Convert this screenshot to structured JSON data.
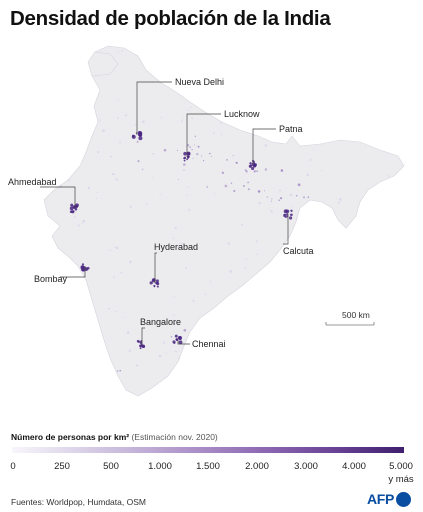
{
  "title": "Densidad de población de la India",
  "map": {
    "colors": {
      "land": "#ececef",
      "border": "#d7d4dc",
      "density_low": "#d9cfe8",
      "density_mid": "#9c80c0",
      "density_high": "#4b2783",
      "leader": "#444444"
    },
    "cities": [
      {
        "name": "Nueva Delhi"
      },
      {
        "name": "Lucknow"
      },
      {
        "name": "Patna"
      },
      {
        "name": "Ahmedabad"
      },
      {
        "name": "Calcuta"
      },
      {
        "name": "Hyderabad"
      },
      {
        "name": "Bombay"
      },
      {
        "name": "Bangalore"
      },
      {
        "name": "Chennai"
      }
    ],
    "scale_label": "500 km"
  },
  "legend": {
    "title": "Número de personas por km²",
    "note": "(Estimación nov. 2020)",
    "ticks": [
      "0",
      "250",
      "500",
      "1.000",
      "1.500",
      "2.000",
      "3.000",
      "4.000",
      "5.000"
    ],
    "last_sub": "y más"
  },
  "sources": "Fuentes: Worldpop, Humdata, OSM",
  "brand": {
    "name": "AFP"
  }
}
